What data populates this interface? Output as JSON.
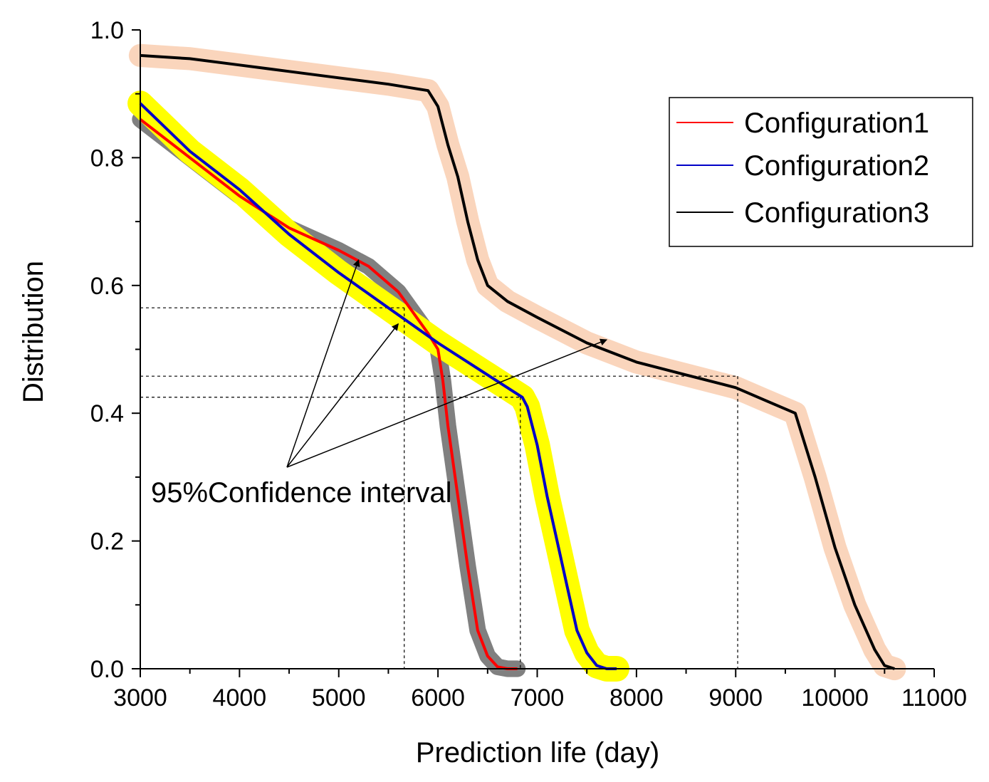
{
  "chart_data": {
    "type": "line",
    "xlabel": "Prediction life (day)",
    "ylabel": "Distribution",
    "xlim": [
      3000,
      11000
    ],
    "ylim": [
      0,
      1.0
    ],
    "xticks": [
      {
        "value": 3000,
        "label": "3000"
      },
      {
        "value": 4000,
        "label": "4000"
      },
      {
        "value": 5000,
        "label": "5000"
      },
      {
        "value": 6000,
        "label": "6000"
      },
      {
        "value": 7000,
        "label": "7000"
      },
      {
        "value": 8000,
        "label": "8000"
      },
      {
        "value": 9000,
        "label": "9000"
      },
      {
        "value": 10000,
        "label": "10000"
      },
      {
        "value": 11000,
        "label": "11000"
      }
    ],
    "yticks": [
      {
        "value": 0.0,
        "label": "0.0"
      },
      {
        "value": 0.2,
        "label": "0.2"
      },
      {
        "value": 0.4,
        "label": "0.4"
      },
      {
        "value": 0.6,
        "label": "0.6"
      },
      {
        "value": 0.8,
        "label": "0.8"
      },
      {
        "value": 1.0,
        "label": "1.0"
      }
    ],
    "legend_position": "top-right",
    "series": [
      {
        "name": "Configuration1",
        "color": "#ff0000",
        "band_color": "#808080",
        "band_halfwidth": 0.013,
        "x": [
          3000,
          3500,
          4000,
          4500,
          5000,
          5300,
          5600,
          5900,
          6000,
          6050,
          6100,
          6200,
          6300,
          6400,
          6500,
          6600,
          6700,
          6800
        ],
        "y": [
          0.86,
          0.8,
          0.74,
          0.69,
          0.655,
          0.63,
          0.59,
          0.525,
          0.5,
          0.45,
          0.38,
          0.27,
          0.16,
          0.06,
          0.02,
          0.003,
          0.0,
          0.0
        ]
      },
      {
        "name": "Configuration2",
        "color": "#0000c8",
        "band_color": "#ffff00",
        "band_halfwidth": 0.02,
        "x": [
          3000,
          3500,
          4000,
          4500,
          5000,
          5500,
          6000,
          6500,
          6850,
          6900,
          7000,
          7100,
          7200,
          7300,
          7400,
          7500,
          7600,
          7700,
          7800
        ],
        "y": [
          0.885,
          0.81,
          0.75,
          0.68,
          0.62,
          0.565,
          0.51,
          0.46,
          0.425,
          0.41,
          0.35,
          0.27,
          0.2,
          0.13,
          0.06,
          0.025,
          0.005,
          0.0,
          0.0
        ]
      },
      {
        "name": "Configuration3",
        "color": "#000000",
        "band_color": "#fad5bc",
        "band_halfwidth": 0.018,
        "x": [
          3000,
          3500,
          4000,
          4500,
          5000,
          5500,
          5900,
          6000,
          6100,
          6200,
          6300,
          6400,
          6500,
          6700,
          7000,
          7500,
          8000,
          8500,
          9000,
          9300,
          9600,
          9800,
          10000,
          10200,
          10400,
          10500,
          10600
        ],
        "y": [
          0.96,
          0.955,
          0.945,
          0.935,
          0.925,
          0.915,
          0.905,
          0.88,
          0.82,
          0.77,
          0.7,
          0.64,
          0.6,
          0.575,
          0.55,
          0.51,
          0.48,
          0.46,
          0.44,
          0.42,
          0.4,
          0.3,
          0.19,
          0.1,
          0.03,
          0.005,
          0.0
        ]
      }
    ],
    "reference_lines": [
      {
        "x": 5660,
        "y": 0.565
      },
      {
        "x": 6830,
        "y": 0.425
      },
      {
        "x": 9020,
        "y": 0.458
      }
    ],
    "annotation": {
      "text": "95%Confidence interval",
      "arrows_to": [
        {
          "x": 5200,
          "y": 0.64
        },
        {
          "x": 5600,
          "y": 0.54
        },
        {
          "x": 7700,
          "y": 0.515
        }
      ]
    }
  }
}
